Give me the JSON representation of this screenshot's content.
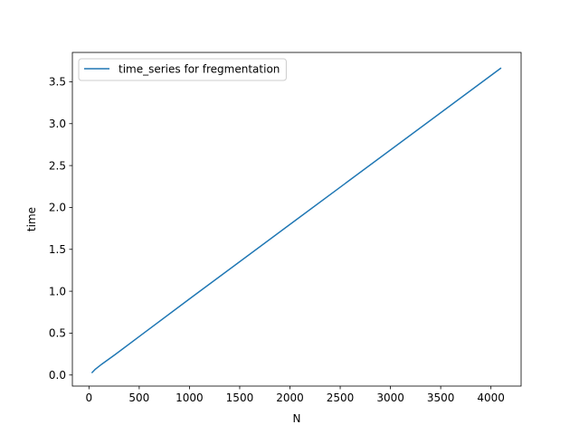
{
  "chart_data": {
    "type": "line",
    "title": "",
    "xlabel": "N",
    "ylabel": "time",
    "xlim": [
      -165,
      4300
    ],
    "ylim": [
      -0.132,
      3.85
    ],
    "xticks": [
      0,
      500,
      1000,
      1500,
      2000,
      2500,
      3000,
      3500,
      4000
    ],
    "xtick_labels": [
      "0",
      "500",
      "1000",
      "1500",
      "2000",
      "2500",
      "3000",
      "3500",
      "4000"
    ],
    "yticks": [
      0.0,
      0.5,
      1.0,
      1.5,
      2.0,
      2.5,
      3.0,
      3.5
    ],
    "ytick_labels": [
      "0.0",
      "0.5",
      "1.0",
      "1.5",
      "2.0",
      "2.5",
      "3.0",
      "3.5"
    ],
    "grid": false,
    "legend_position": "top-left",
    "series": [
      {
        "name": "time_series for fregmentation",
        "color": "#1f77b4",
        "x": [
          32,
          64,
          128,
          256,
          512,
          1024,
          2048,
          4096
        ],
        "y": [
          0.03,
          0.07,
          0.13,
          0.24,
          0.47,
          0.93,
          1.84,
          3.66
        ]
      }
    ]
  }
}
